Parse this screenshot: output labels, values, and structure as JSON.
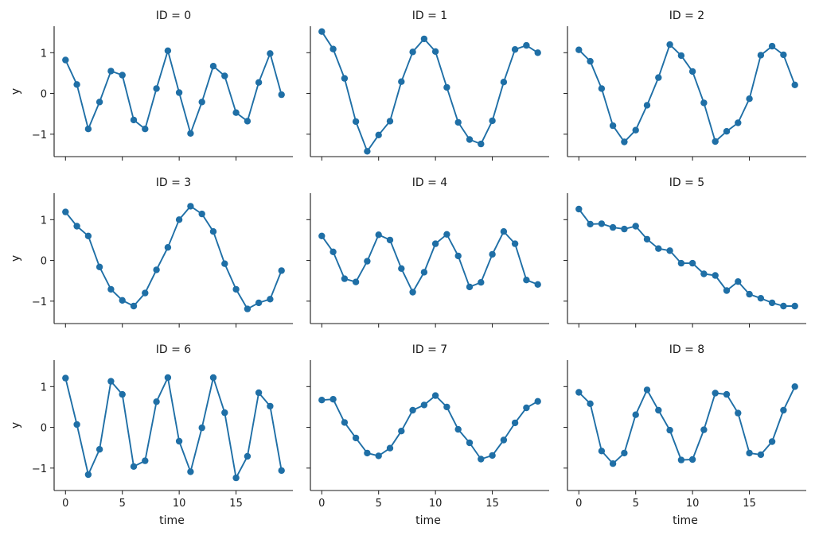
{
  "chart_data": {
    "type": "line",
    "layout": "facet-grid 3x3",
    "marker": "circle",
    "line_color": "#1f6fa6",
    "shared_x": {
      "label": "time",
      "lim": [
        -1,
        20
      ],
      "ticks": [
        0,
        5,
        10,
        15
      ],
      "tick_labels": [
        "0",
        "5",
        "10",
        "15"
      ]
    },
    "shared_y": {
      "label": "y",
      "lim": [
        -1.55,
        1.65
      ],
      "ticks": [
        -1,
        0,
        1
      ],
      "tick_labels": [
        "−1",
        "0",
        "1"
      ]
    },
    "x": [
      0,
      1,
      2,
      3,
      4,
      5,
      6,
      7,
      8,
      9,
      10,
      11,
      12,
      13,
      14,
      15,
      16,
      17,
      18,
      19
    ],
    "panels": [
      {
        "title": "ID = 0",
        "values": [
          0.82,
          0.22,
          -0.87,
          -0.21,
          0.55,
          0.45,
          -0.65,
          -0.87,
          0.12,
          1.05,
          0.02,
          -0.98,
          -0.21,
          0.67,
          0.43,
          -0.47,
          -0.68,
          0.27,
          0.98,
          -0.03
        ]
      },
      {
        "title": "ID = 1",
        "values": [
          1.52,
          1.09,
          0.37,
          -0.69,
          -1.42,
          -1.02,
          -0.68,
          0.29,
          1.02,
          1.34,
          1.03,
          0.15,
          -0.71,
          -1.13,
          -1.24,
          -0.67,
          0.28,
          1.08,
          1.18,
          1.0
        ]
      },
      {
        "title": "ID = 2",
        "values": [
          1.07,
          0.79,
          0.12,
          -0.79,
          -1.19,
          -0.9,
          -0.29,
          0.39,
          1.2,
          0.93,
          0.54,
          -0.23,
          -1.18,
          -0.93,
          -0.72,
          -0.13,
          0.94,
          1.16,
          0.95,
          0.21
        ]
      },
      {
        "title": "ID = 3",
        "values": [
          1.19,
          0.84,
          0.6,
          -0.16,
          -0.71,
          -0.98,
          -1.12,
          -0.8,
          -0.23,
          0.32,
          1.0,
          1.33,
          1.14,
          0.71,
          -0.08,
          -0.71,
          -1.19,
          -1.04,
          -0.95,
          -0.25
        ]
      },
      {
        "title": "ID = 4",
        "values": [
          0.6,
          0.21,
          -0.45,
          -0.53,
          -0.02,
          0.63,
          0.5,
          -0.2,
          -0.78,
          -0.29,
          0.41,
          0.64,
          0.11,
          -0.65,
          -0.54,
          0.15,
          0.71,
          0.41,
          -0.48,
          -0.59
        ]
      },
      {
        "title": "ID = 5",
        "values": [
          1.26,
          0.89,
          0.9,
          0.81,
          0.77,
          0.84,
          0.52,
          0.29,
          0.24,
          -0.07,
          -0.07,
          -0.33,
          -0.37,
          -0.74,
          -0.52,
          -0.83,
          -0.93,
          -1.04,
          -1.12,
          -1.12
        ]
      },
      {
        "title": "ID = 6",
        "values": [
          1.21,
          0.07,
          -1.16,
          -0.54,
          1.13,
          0.81,
          -0.96,
          -0.82,
          0.63,
          1.22,
          -0.34,
          -1.09,
          -0.01,
          1.22,
          0.36,
          -1.24,
          -0.71,
          0.85,
          0.52,
          -1.06
        ]
      },
      {
        "title": "ID = 7",
        "values": [
          0.67,
          0.69,
          0.12,
          -0.26,
          -0.63,
          -0.7,
          -0.51,
          -0.09,
          0.42,
          0.55,
          0.78,
          0.5,
          -0.05,
          -0.38,
          -0.78,
          -0.69,
          -0.31,
          0.11,
          0.48,
          0.64
        ]
      },
      {
        "title": "ID = 8",
        "values": [
          0.86,
          0.58,
          -0.58,
          -0.89,
          -0.63,
          0.31,
          0.92,
          0.42,
          -0.07,
          -0.8,
          -0.79,
          -0.06,
          0.84,
          0.81,
          0.35,
          -0.63,
          -0.67,
          -0.35,
          0.42,
          1.0
        ]
      }
    ]
  }
}
